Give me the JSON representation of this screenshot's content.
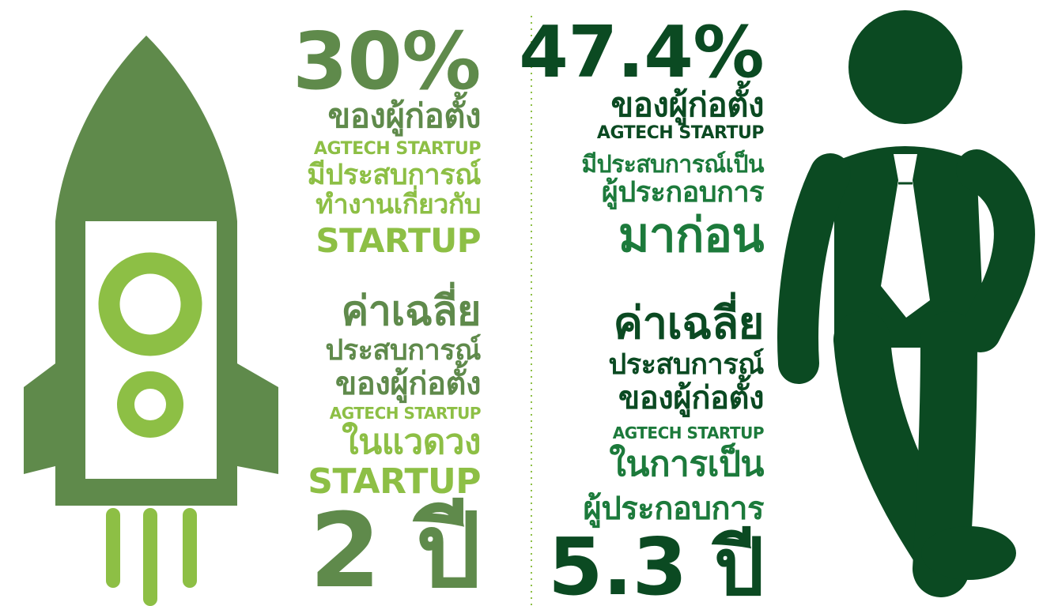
{
  "left": {
    "lines": [
      "30%",
      "ของผู้ก่อตั้ง",
      "AGTECH STARTUP",
      "มีประสบการณ์",
      "ทำงานเกี่ยวกับ",
      "STARTUP",
      "ค่าเฉลี่ย",
      "ประสบการณ์",
      "ของผู้ก่อตั้ง",
      "AGTECH STARTUP",
      "ในแวดวง",
      "STARTUP",
      "2 ปี"
    ]
  },
  "right": {
    "lines": [
      "47.4%",
      "ของผู้ก่อตั้ง",
      "AGTECH STARTUP",
      "มีประสบการณ์เป็น",
      "ผู้ประกอบการ",
      "มาก่อน",
      "ค่าเฉลี่ย",
      "ประสบการณ์",
      "ของผู้ก่อตั้ง",
      "AGTECH STARTUP",
      "ในการเป็น",
      "ผู้ประกอบการ",
      "5.3 ปี"
    ]
  }
}
